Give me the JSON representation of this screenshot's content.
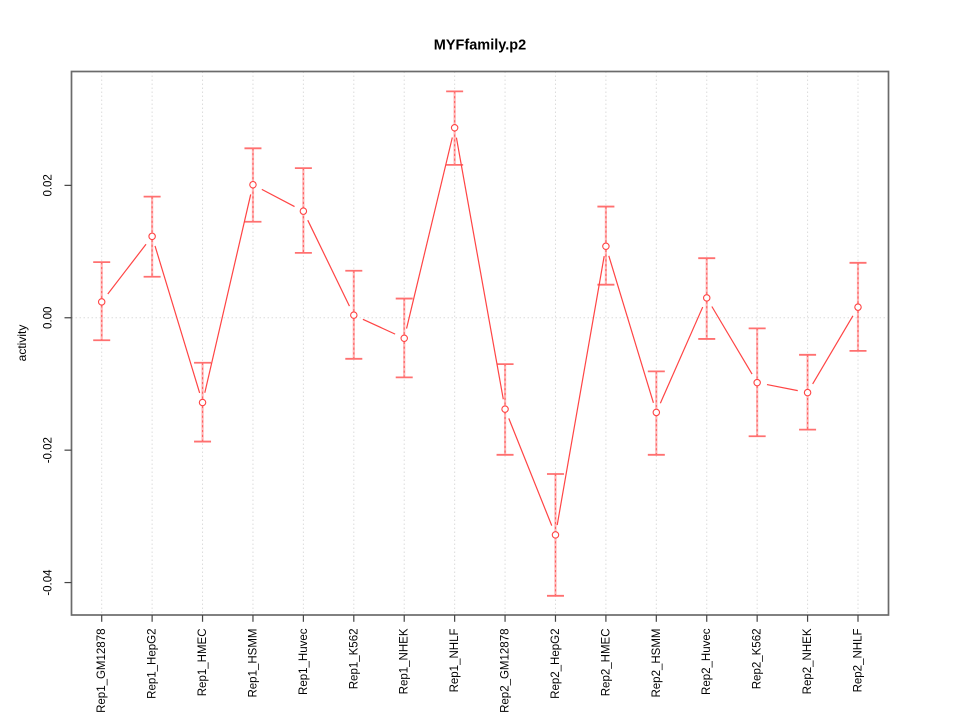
{
  "title": "MYFfamily.p2",
  "chart_data": {
    "type": "line",
    "title": "MYFfamily.p2",
    "xlabel": "",
    "ylabel": "activity",
    "legend": "none",
    "categories": [
      "Rep1_GM12878",
      "Rep1_HepG2",
      "Rep1_HMEC",
      "Rep1_HSMM",
      "Rep1_Huvec",
      "Rep1_K562",
      "Rep1_NHEK",
      "Rep1_NHLF",
      "Rep2_GM12878",
      "Rep2_HepG2",
      "Rep2_HMEC",
      "Rep2_HSMM",
      "Rep2_Huvec",
      "Rep2_K562",
      "Rep2_NHEK",
      "Rep2_NHLF"
    ],
    "series": [
      {
        "name": "activity",
        "marker": "open-circle",
        "values": [
          0.0024,
          0.0123,
          -0.0128,
          0.0201,
          0.0161,
          0.0004,
          -0.0031,
          0.0287,
          -0.0138,
          -0.0328,
          0.0108,
          -0.0143,
          0.003,
          -0.0098,
          -0.0113,
          0.0016
        ],
        "upper": [
          0.0084,
          0.0183,
          -0.0068,
          0.0256,
          0.0226,
          0.0071,
          0.0029,
          0.0342,
          -0.007,
          -0.0236,
          0.0168,
          -0.0081,
          0.009,
          -0.0016,
          -0.0056,
          0.0083
        ],
        "lower": [
          -0.0034,
          0.0062,
          -0.0187,
          0.0145,
          0.0098,
          -0.0062,
          -0.009,
          0.0231,
          -0.0207,
          -0.042,
          0.005,
          -0.0207,
          -0.0032,
          -0.0179,
          -0.0169,
          -0.005
        ]
      }
    ],
    "yticks": [
      {
        "value": 0.02,
        "label": "0.02"
      },
      {
        "value": 0.0,
        "label": "0.00"
      },
      {
        "value": -0.02,
        "label": "-0.02"
      },
      {
        "value": -0.04,
        "label": "-0.04"
      }
    ],
    "ylim": [
      -0.0449,
      0.0372
    ],
    "grid": {
      "vertical": "dotted line at every category",
      "horizontal": "dotted line at y=0 only"
    },
    "colors": {
      "series_line": "#ff4444",
      "marker_stroke": "#ff4444",
      "error_bar_shaft": "#ffb5b5",
      "error_bar_dash": "#ff6060",
      "error_bar_cap": "#ff7070",
      "grid": "#dcdcdc",
      "axis_box": "#6b6b6b",
      "tick": "#444444",
      "text": "#000000",
      "background": "#ffffff"
    }
  }
}
